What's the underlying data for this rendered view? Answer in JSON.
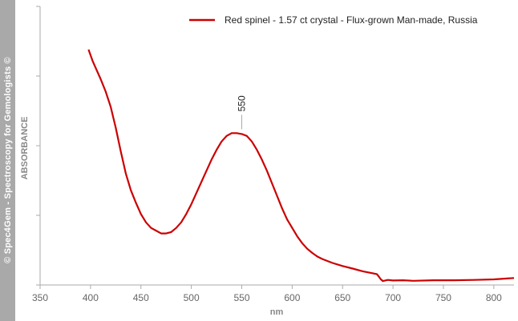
{
  "watermark": "© Spec4Gem - Spectroscopy for Gemologists ©",
  "chart_data": {
    "type": "line",
    "xlabel": "nm",
    "ylabel": "ABSORBANCE",
    "xlim": [
      350,
      820
    ],
    "ylim": [
      0,
      100
    ],
    "x_ticks": [
      350,
      400,
      450,
      500,
      550,
      600,
      650,
      700,
      750,
      800
    ],
    "y_tick_marks": [
      0,
      25,
      50,
      75,
      100
    ],
    "show_y_tick_labels": false,
    "grid": false,
    "legend_position": "top-right",
    "line_color": "#cc0000",
    "series": [
      {
        "name": "Red spinel - 1.57 ct crystal - Flux-grown Man-made, Russia",
        "x": [
          398,
          402,
          405,
          410,
          415,
          420,
          425,
          430,
          435,
          440,
          445,
          450,
          455,
          460,
          465,
          470,
          475,
          480,
          485,
          490,
          495,
          500,
          505,
          510,
          515,
          520,
          525,
          530,
          535,
          540,
          545,
          550,
          555,
          560,
          565,
          570,
          575,
          580,
          585,
          590,
          595,
          600,
          605,
          610,
          615,
          620,
          625,
          630,
          640,
          650,
          660,
          670,
          680,
          684,
          686,
          688,
          690,
          695,
          700,
          710,
          720,
          740,
          760,
          780,
          800,
          820
        ],
        "y": [
          84.5,
          80.5,
          78,
          74,
          69.5,
          64,
          56.5,
          48,
          40,
          34,
          29.5,
          25.5,
          22.5,
          20.5,
          19.5,
          18.5,
          18.5,
          19,
          20.5,
          22.5,
          25.5,
          29,
          33,
          37,
          41,
          45,
          48.5,
          51.5,
          53.5,
          54.5,
          54.5,
          54.2,
          53.5,
          51.5,
          48.5,
          45,
          41,
          36.5,
          32,
          27.5,
          23.5,
          20.5,
          17.5,
          15,
          13,
          11.5,
          10.2,
          9.3,
          7.9,
          6.8,
          5.9,
          4.9,
          4.2,
          3.9,
          3.0,
          2.0,
          1.4,
          1.8,
          1.6,
          1.7,
          1.5,
          1.7,
          1.7,
          1.8,
          2.0,
          2.5
        ]
      }
    ],
    "annotations": [
      {
        "x": 550,
        "label": "550"
      }
    ]
  }
}
